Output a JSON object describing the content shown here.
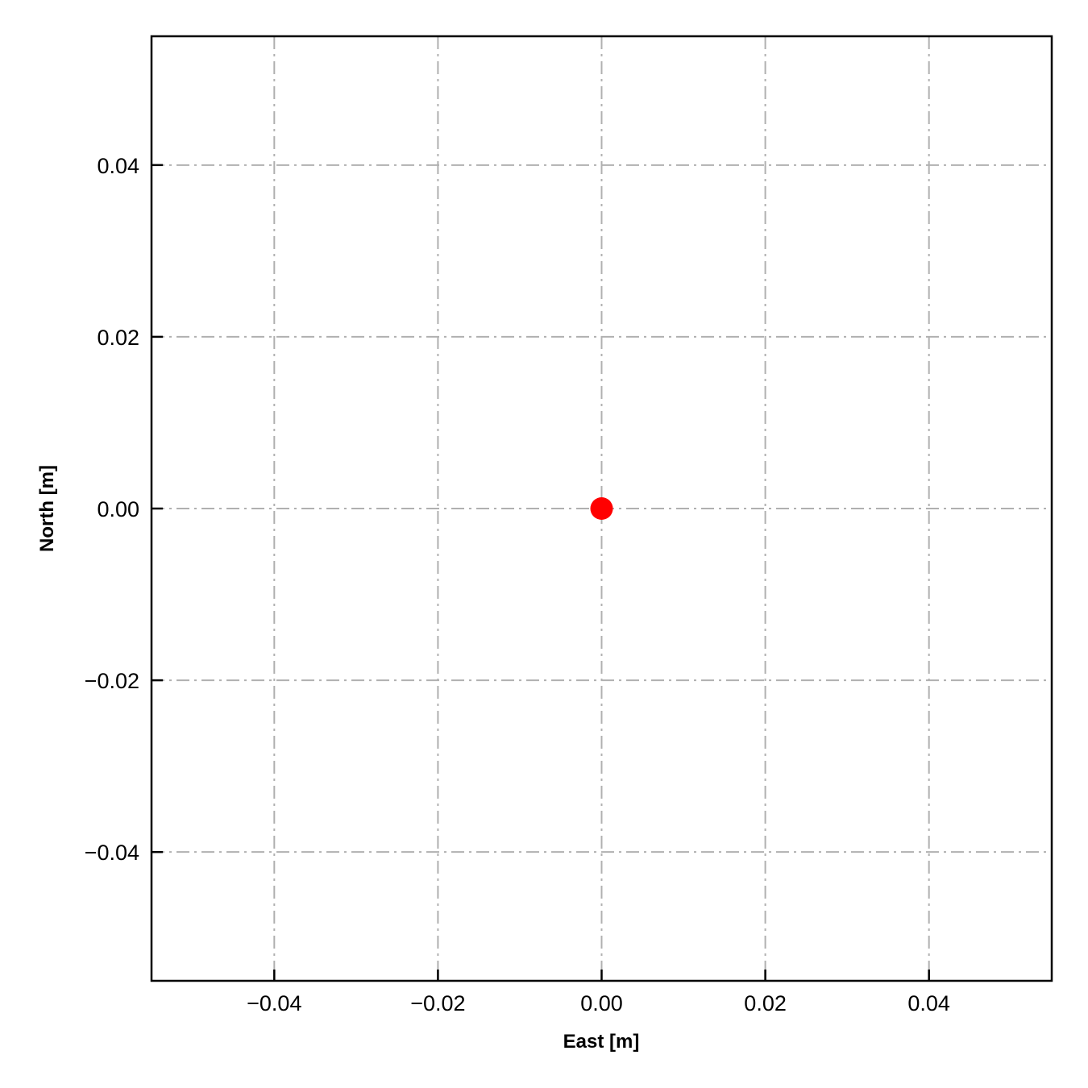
{
  "chart_data": {
    "type": "scatter",
    "title": "",
    "xlabel": "East [m]",
    "ylabel": "North [m]",
    "xlim": [
      -0.055,
      0.055
    ],
    "ylim": [
      -0.055,
      0.055
    ],
    "xticks": [
      -0.04,
      -0.02,
      0.0,
      0.02,
      0.04
    ],
    "yticks": [
      -0.04,
      -0.02,
      0.0,
      0.02,
      0.04
    ],
    "xtick_labels": [
      "−0.04",
      "−0.02",
      "0.00",
      "0.02",
      "0.04"
    ],
    "ytick_labels": [
      "−0.04",
      "−0.02",
      "0.00",
      "0.02",
      "0.04"
    ],
    "grid": true,
    "grid_style": "dash-dot",
    "tick_direction": "in",
    "series": [
      {
        "x": [
          0.0
        ],
        "y": [
          0.0
        ],
        "color": "#ff0000",
        "marker": "circle"
      }
    ]
  }
}
